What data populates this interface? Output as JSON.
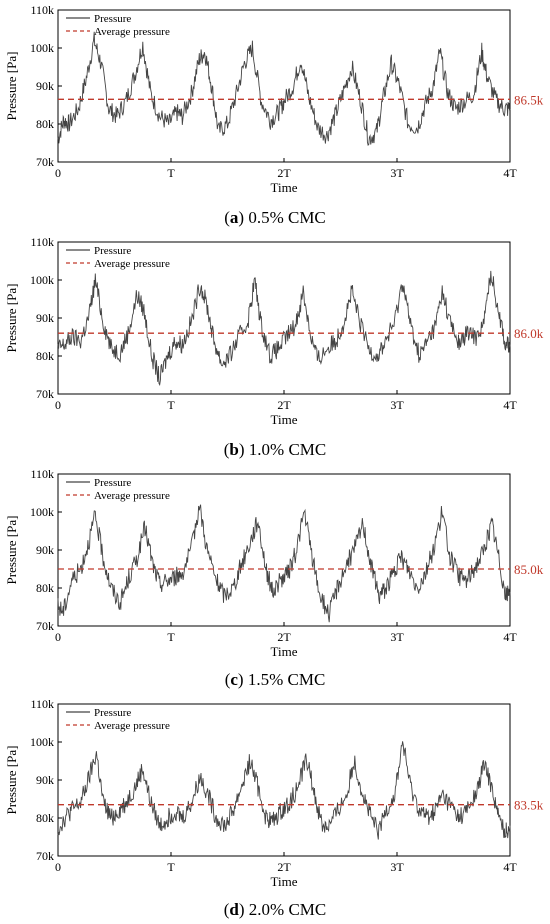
{
  "chart_data": [
    {
      "type": "line",
      "panel_label": "a",
      "caption": "0.5% CMC",
      "xlabel": "Time",
      "ylabel": "Pressure [Pa]",
      "x_ticks": [
        "0",
        "T",
        "2T",
        "3T",
        "4T"
      ],
      "y_ticks": [
        "70k",
        "80k",
        "90k",
        "100k",
        "110k"
      ],
      "ylim": [
        70000,
        110000
      ],
      "xlim": [
        0,
        4
      ],
      "legend": [
        "Pressure",
        "Average pressure"
      ],
      "legend_position": "top-left",
      "average_label": "86.5k",
      "average": 86500,
      "series": [
        {
          "name": "Pressure",
          "x": [
            0,
            0.05,
            0.1,
            0.18,
            0.25,
            0.32,
            0.38,
            0.45,
            0.52,
            0.6,
            0.68,
            0.75,
            0.82,
            0.9,
            0.98,
            1.05,
            1.1,
            1.18,
            1.25,
            1.3,
            1.36,
            1.42,
            1.5,
            1.58,
            1.65,
            1.72,
            1.8,
            1.88,
            1.95,
            2.0,
            2.08,
            2.15,
            2.22,
            2.3,
            2.38,
            2.45,
            2.52,
            2.6,
            2.68,
            2.75,
            2.82,
            2.88,
            2.95,
            3.02,
            3.1,
            3.18,
            3.25,
            3.32,
            3.38,
            3.45,
            3.52,
            3.6,
            3.68,
            3.75,
            3.8,
            3.88,
            3.95,
            4.0
          ],
          "y": [
            76000,
            81000,
            80000,
            84000,
            92000,
            102000,
            96000,
            84000,
            82000,
            86000,
            93000,
            101000,
            88000,
            82000,
            80000,
            83000,
            82000,
            88000,
            97000,
            99000,
            90000,
            78000,
            80000,
            88000,
            96000,
            100000,
            86000,
            81000,
            83000,
            86000,
            90000,
            97000,
            87000,
            79000,
            77000,
            82000,
            88000,
            95000,
            86000,
            76000,
            78000,
            87000,
            96000,
            90000,
            80000,
            79000,
            85000,
            90000,
            99000,
            88000,
            84000,
            86000,
            88000,
            99000,
            92000,
            86000,
            84000,
            84000
          ]
        }
      ]
    },
    {
      "type": "line",
      "panel_label": "b",
      "caption": "1.0% CMC",
      "xlabel": "Time",
      "ylabel": "Pressure [Pa]",
      "x_ticks": [
        "0",
        "T",
        "2T",
        "3T",
        "4T"
      ],
      "y_ticks": [
        "70k",
        "80k",
        "90k",
        "100k",
        "110k"
      ],
      "ylim": [
        70000,
        110000
      ],
      "xlim": [
        0,
        4
      ],
      "legend": [
        "Pressure",
        "Average pressure"
      ],
      "legend_position": "top-left",
      "average_label": "86.0k",
      "average": 86000,
      "series": [
        {
          "name": "Pressure",
          "x": [
            0,
            0.06,
            0.12,
            0.2,
            0.27,
            0.33,
            0.4,
            0.47,
            0.55,
            0.62,
            0.7,
            0.76,
            0.83,
            0.9,
            0.97,
            1.04,
            1.1,
            1.18,
            1.26,
            1.32,
            1.38,
            1.45,
            1.52,
            1.6,
            1.68,
            1.74,
            1.8,
            1.88,
            1.95,
            2.02,
            2.1,
            2.17,
            2.24,
            2.3,
            2.38,
            2.46,
            2.53,
            2.6,
            2.67,
            2.75,
            2.83,
            2.9,
            2.98,
            3.05,
            3.12,
            3.2,
            3.27,
            3.34,
            3.4,
            3.48,
            3.55,
            3.62,
            3.7,
            3.77,
            3.83,
            3.9,
            3.96,
            4.0
          ],
          "y": [
            82000,
            83000,
            85000,
            84000,
            90000,
            100000,
            89000,
            82000,
            81000,
            86000,
            96000,
            92000,
            80000,
            74000,
            80000,
            84000,
            83000,
            89000,
            99000,
            93000,
            84000,
            78000,
            80000,
            85000,
            89000,
            100000,
            88000,
            80000,
            82000,
            85000,
            88000,
            97000,
            85000,
            79000,
            82000,
            84000,
            89000,
            97000,
            89000,
            82000,
            80000,
            84000,
            89000,
            100000,
            88000,
            80000,
            84000,
            88000,
            97000,
            88000,
            83000,
            86000,
            85000,
            89000,
            102000,
            92000,
            83000,
            83000
          ]
        }
      ]
    },
    {
      "type": "line",
      "panel_label": "c",
      "caption": "1.5% CMC",
      "xlabel": "Time",
      "ylabel": "Pressure [Pa]",
      "x_ticks": [
        "0",
        "T",
        "2T",
        "3T",
        "4T"
      ],
      "y_ticks": [
        "70k",
        "80k",
        "90k",
        "100k",
        "110k"
      ],
      "ylim": [
        70000,
        110000
      ],
      "xlim": [
        0,
        4
      ],
      "legend": [
        "Pressure",
        "Average pressure"
      ],
      "legend_position": "top-left",
      "average_label": "85.0k",
      "average": 85000,
      "series": [
        {
          "name": "Pressure",
          "x": [
            0,
            0.05,
            0.12,
            0.2,
            0.27,
            0.33,
            0.4,
            0.47,
            0.55,
            0.62,
            0.7,
            0.77,
            0.84,
            0.9,
            0.97,
            1.04,
            1.1,
            1.18,
            1.25,
            1.32,
            1.4,
            1.47,
            1.55,
            1.62,
            1.7,
            1.77,
            1.84,
            1.9,
            1.97,
            2.04,
            2.1,
            2.18,
            2.25,
            2.32,
            2.4,
            2.47,
            2.55,
            2.62,
            2.7,
            2.77,
            2.84,
            2.9,
            2.97,
            3.04,
            3.1,
            3.18,
            3.25,
            3.32,
            3.4,
            3.47,
            3.55,
            3.62,
            3.7,
            3.77,
            3.84,
            3.9,
            3.96,
            4.0
          ],
          "y": [
            75000,
            74000,
            82000,
            85000,
            92000,
            99000,
            88000,
            80000,
            76000,
            82000,
            88000,
            96000,
            86000,
            81000,
            82000,
            83000,
            84000,
            90000,
            102000,
            90000,
            82000,
            78000,
            80000,
            86000,
            92000,
            98000,
            85000,
            79000,
            82000,
            84000,
            89000,
            100000,
            88000,
            78000,
            73000,
            80000,
            86000,
            90000,
            97000,
            86000,
            78000,
            80000,
            84000,
            88000,
            85000,
            80000,
            84000,
            90000,
            100000,
            88000,
            83000,
            82000,
            86000,
            90000,
            97000,
            88000,
            78000,
            79000
          ]
        }
      ]
    },
    {
      "type": "line",
      "panel_label": "d",
      "caption": "2.0% CMC",
      "xlabel": "Time",
      "ylabel": "Pressure [Pa]",
      "x_ticks": [
        "0",
        "T",
        "2T",
        "3T",
        "4T"
      ],
      "y_ticks": [
        "70k",
        "80k",
        "90k",
        "100k",
        "110k"
      ],
      "ylim": [
        70000,
        110000
      ],
      "xlim": [
        0,
        4
      ],
      "legend": [
        "Pressure",
        "Average pressure"
      ],
      "legend_position": "top-left",
      "average_label": "83.5k",
      "average": 83500,
      "series": [
        {
          "name": "Pressure",
          "x": [
            0,
            0.06,
            0.12,
            0.2,
            0.27,
            0.34,
            0.4,
            0.47,
            0.54,
            0.6,
            0.68,
            0.75,
            0.82,
            0.9,
            0.97,
            1.04,
            1.1,
            1.18,
            1.26,
            1.33,
            1.4,
            1.48,
            1.55,
            1.62,
            1.7,
            1.77,
            1.84,
            1.9,
            1.98,
            2.05,
            2.12,
            2.2,
            2.27,
            2.34,
            2.4,
            2.48,
            2.55,
            2.62,
            2.7,
            2.77,
            2.84,
            2.9,
            2.98,
            3.05,
            3.12,
            3.2,
            3.27,
            3.34,
            3.4,
            3.48,
            3.55,
            3.62,
            3.7,
            3.77,
            3.84,
            3.9,
            3.96,
            4.0
          ],
          "y": [
            77000,
            80000,
            82000,
            84000,
            90000,
            97000,
            84000,
            80000,
            82000,
            84000,
            88000,
            93000,
            84000,
            78000,
            80000,
            82000,
            80000,
            84000,
            91000,
            86000,
            80000,
            78000,
            82000,
            88000,
            95000,
            88000,
            80000,
            79000,
            82000,
            84000,
            88000,
            96000,
            86000,
            78000,
            78000,
            82000,
            86000,
            95000,
            86000,
            80000,
            76000,
            82000,
            86000,
            100000,
            88000,
            82000,
            80000,
            82000,
            86000,
            83000,
            80000,
            82000,
            86000,
            94000,
            88000,
            80000,
            76000,
            78000
          ]
        }
      ]
    }
  ]
}
